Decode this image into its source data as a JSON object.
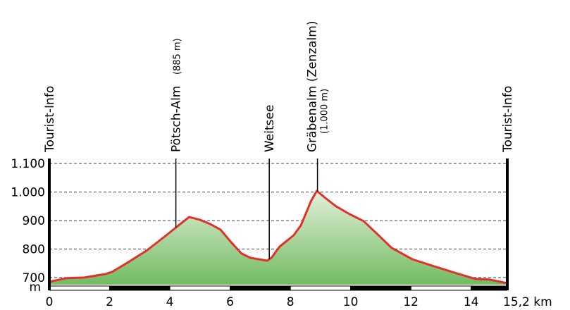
{
  "chart_data": {
    "type": "area",
    "x_unit_label": "m",
    "x": [
      0,
      0.58,
      1.16,
      1.86,
      2.09,
      2.67,
      3.25,
      3.94,
      4.29,
      4.64,
      4.98,
      5.33,
      5.68,
      6.03,
      6.38,
      6.68,
      7.23,
      7.37,
      7.65,
      8.11,
      8.35,
      8.69,
      8.88,
      9.16,
      9.51,
      9.97,
      10.43,
      10.9,
      11.36,
      12.05,
      12.75,
      13.45,
      14.14,
      14.6,
      15.2
    ],
    "values": [
      685,
      698,
      700,
      712,
      720,
      757,
      796,
      853,
      883,
      912,
      903,
      888,
      868,
      824,
      784,
      769,
      759,
      769,
      809,
      848,
      883,
      969,
      1004,
      979,
      950,
      922,
      898,
      851,
      804,
      764,
      740,
      717,
      695,
      693,
      680
    ],
    "color": "#e3302a",
    "fill_top": "#e2f0da",
    "fill_bottom": "#72bb62",
    "xlim": [
      0,
      15.2
    ],
    "ylim": [
      675,
      1100
    ],
    "xticks": [
      0,
      2,
      4,
      6,
      8,
      10,
      12,
      14,
      {
        "value": 15.2,
        "label": "15,2 km"
      }
    ],
    "yticks": [
      {
        "value": 700,
        "label": "700"
      },
      800,
      900,
      {
        "value": 1000,
        "label": "1.000"
      },
      {
        "value": 1100,
        "label": "1.100"
      }
    ],
    "grid": true,
    "markers": [
      {
        "label": "Tourist-Info",
        "x": 0
      },
      {
        "label": "Pötsch-Alm",
        "note": "(885 m)",
        "x": 4.2
      },
      {
        "label": "Weitsee",
        "x": 7.3
      },
      {
        "label": "Gräbenalm (Zenzalm)",
        "note": "(1.000 m)",
        "x": 8.9
      },
      {
        "label": "Tourist-Info",
        "x": 15.2
      }
    ]
  }
}
